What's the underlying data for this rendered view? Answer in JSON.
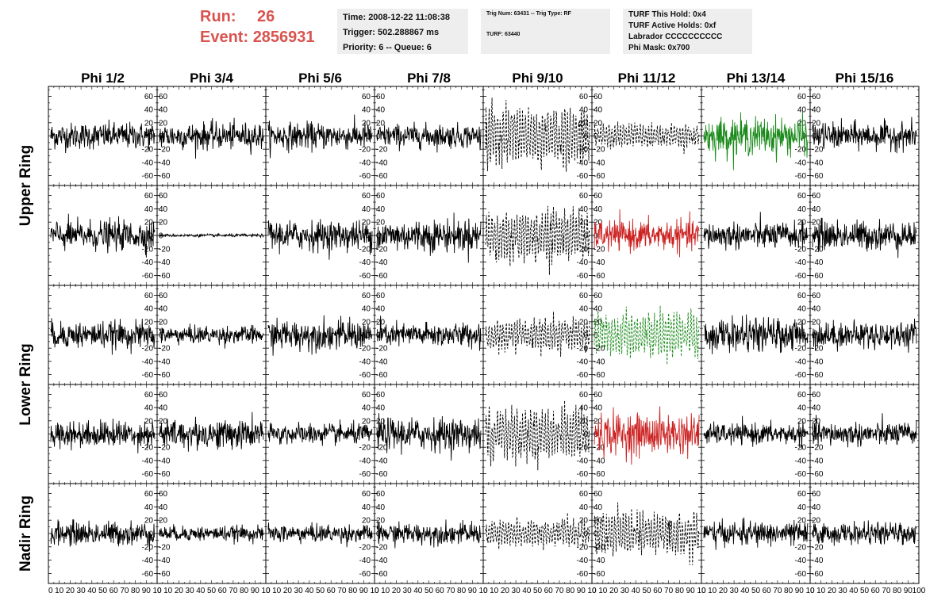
{
  "header": {
    "run_label": "Run:",
    "run_value": "26",
    "event_label": "Event:",
    "event_value": "2856931",
    "time": "Time: 2008-12-22 11:08:38",
    "trigger": "Trigger: 502.288867 ms",
    "priority": "Priority: 6 -- Queue: 6",
    "trig_num": "Trig Num: 63431 -- Trig Type: RF",
    "turf": "TURF: 63440",
    "turf_this_hold": "TURF This Hold: 0x4",
    "turf_active_holds": "TURF Active Holds: 0xf",
    "labrador": "Labrador CCCCCCCCCC",
    "phi_mask": "Phi Mask: 0x700"
  },
  "colors": {
    "header_red": "#d9534f",
    "trace_black": "#000000",
    "trace_green": "#1a8a1a",
    "trace_red": "#cc2222",
    "box_bg": "#eeeeee"
  },
  "chart_data": {
    "type": "line",
    "columns": [
      "Phi 1/2",
      "Phi 3/4",
      "Phi 5/6",
      "Phi 7/8",
      "Phi 9/10",
      "Phi 11/12",
      "Phi 13/14",
      "Phi 15/16"
    ],
    "ring_labels": [
      "Upper Ring",
      "Lower Ring",
      "Nadir Ring"
    ],
    "rows": 5,
    "ylim": [
      -75,
      75
    ],
    "xlim": [
      0,
      100
    ],
    "y_ticks": [
      -60,
      -40,
      -20,
      0,
      20,
      40,
      60
    ],
    "x_ticks": [
      0,
      10,
      20,
      30,
      40,
      50,
      60,
      70,
      80,
      90,
      100
    ],
    "y_tick_labels_odd_cols": [
      "60",
      "40",
      "20",
      "0",
      "-20",
      "-40",
      "-60"
    ],
    "x_tick_labels": [
      "0",
      "10",
      "20",
      "30",
      "40",
      "50",
      "60",
      "70",
      "80",
      "90",
      "100"
    ],
    "x_axis_row_labels": [
      "0  10 20 30 40 50 60 70 80 90 10",
      "0  10 20 30 40 50 60 70 80 90 10",
      "0  10 20 30 40 50 60 70 80 90 10",
      "0  10 20 30 40 50 60 70 80 90 10",
      "0  10 20 30 40 50 60 70 80 90 10",
      "0  10 20 30 40 50 60 70 80 90 10",
      "0  10 20 30 40 50 60 70 80 90 10",
      "0  10 20 30 40 50 60 70 80 90 100"
    ],
    "panel_traces": [
      [
        {
          "amp": 18,
          "style": "solid",
          "color": "black"
        },
        {
          "amp": 18,
          "style": "solid",
          "color": "black"
        },
        {
          "amp": 18,
          "style": "solid",
          "color": "black"
        },
        {
          "amp": 16,
          "style": "solid",
          "color": "black"
        },
        {
          "amp": 40,
          "style": "dashed",
          "color": "black"
        },
        {
          "amp": 16,
          "style": "dashed",
          "color": "black"
        },
        {
          "amp": 25,
          "style": "solid",
          "color": "green"
        },
        {
          "amp": 18,
          "style": "solid",
          "color": "black"
        }
      ],
      [
        {
          "amp": 20,
          "style": "solid",
          "color": "black"
        },
        {
          "amp": 2,
          "style": "solid",
          "color": "black"
        },
        {
          "amp": 20,
          "style": "solid",
          "color": "black"
        },
        {
          "amp": 22,
          "style": "solid",
          "color": "black"
        },
        {
          "amp": 35,
          "style": "dashed",
          "color": "black"
        },
        {
          "amp": 20,
          "style": "solid",
          "color": "red"
        },
        {
          "amp": 18,
          "style": "solid",
          "color": "black"
        },
        {
          "amp": 20,
          "style": "solid",
          "color": "black"
        }
      ],
      [
        {
          "amp": 18,
          "style": "solid",
          "color": "black"
        },
        {
          "amp": 12,
          "style": "solid",
          "color": "black"
        },
        {
          "amp": 20,
          "style": "solid",
          "color": "black"
        },
        {
          "amp": 16,
          "style": "solid",
          "color": "black"
        },
        {
          "amp": 22,
          "style": "dashed",
          "color": "black"
        },
        {
          "amp": 30,
          "style": "dashed",
          "color": "green"
        },
        {
          "amp": 22,
          "style": "solid",
          "color": "black"
        },
        {
          "amp": 18,
          "style": "solid",
          "color": "black"
        }
      ],
      [
        {
          "amp": 18,
          "style": "solid",
          "color": "black"
        },
        {
          "amp": 20,
          "style": "solid",
          "color": "black"
        },
        {
          "amp": 14,
          "style": "solid",
          "color": "black"
        },
        {
          "amp": 22,
          "style": "solid",
          "color": "black"
        },
        {
          "amp": 35,
          "style": "dashed",
          "color": "black"
        },
        {
          "amp": 28,
          "style": "solid",
          "color": "red"
        },
        {
          "amp": 14,
          "style": "solid",
          "color": "black"
        },
        {
          "amp": 16,
          "style": "solid",
          "color": "black"
        }
      ],
      [
        {
          "amp": 16,
          "style": "solid",
          "color": "black"
        },
        {
          "amp": 10,
          "style": "solid",
          "color": "black"
        },
        {
          "amp": 12,
          "style": "solid",
          "color": "black"
        },
        {
          "amp": 14,
          "style": "solid",
          "color": "black"
        },
        {
          "amp": 18,
          "style": "dashed",
          "color": "black"
        },
        {
          "amp": 30,
          "style": "dashed",
          "color": "black"
        },
        {
          "amp": 16,
          "style": "solid",
          "color": "black"
        },
        {
          "amp": 14,
          "style": "solid",
          "color": "black"
        }
      ]
    ]
  }
}
